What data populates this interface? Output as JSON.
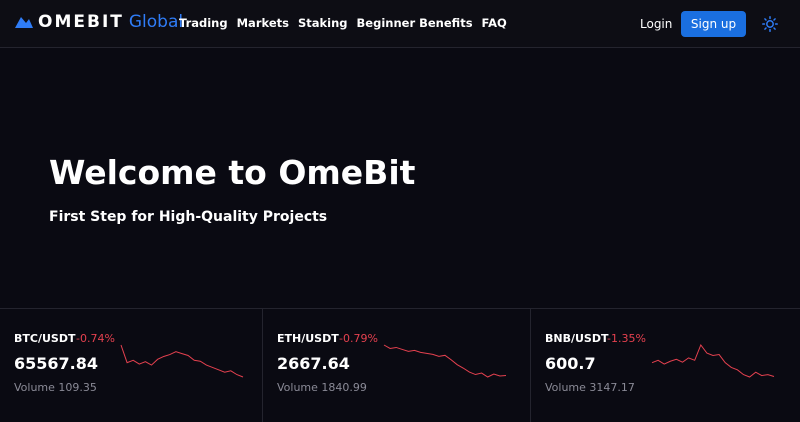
{
  "header": {
    "logo": "OMEBIT",
    "logo_suffix": "Global",
    "nav": [
      "Trading",
      "Markets",
      "Staking",
      "Beginner Benefits",
      "FAQ"
    ],
    "login": "Login",
    "signup": "Sign up"
  },
  "hero": {
    "title": "Welcome to OmeBit",
    "subtitle": "First Step for High-Quality Projects"
  },
  "tickers": [
    {
      "pair": "BTC/USDT",
      "change": "-0.74%",
      "price": "65567.84",
      "volume": "Volume 109.35",
      "sparkline": [
        92,
        55,
        60,
        52,
        57,
        50,
        62,
        68,
        72,
        78,
        74,
        70,
        60,
        58,
        50,
        45,
        40,
        35,
        38,
        30,
        25
      ]
    },
    {
      "pair": "ETH/USDT",
      "change": "-0.79%",
      "price": "2667.64",
      "volume": "Volume 1840.99",
      "sparkline": [
        95,
        88,
        90,
        86,
        82,
        84,
        80,
        78,
        76,
        72,
        74,
        65,
        55,
        48,
        40,
        35,
        38,
        30,
        36,
        32,
        33
      ]
    },
    {
      "pair": "BNB/USDT",
      "change": "-1.35%",
      "price": "600.7",
      "volume": "Volume 3147.17",
      "sparkline": [
        55,
        60,
        52,
        58,
        62,
        56,
        65,
        60,
        92,
        75,
        70,
        72,
        55,
        45,
        40,
        30,
        25,
        35,
        28,
        30,
        26
      ]
    }
  ]
}
